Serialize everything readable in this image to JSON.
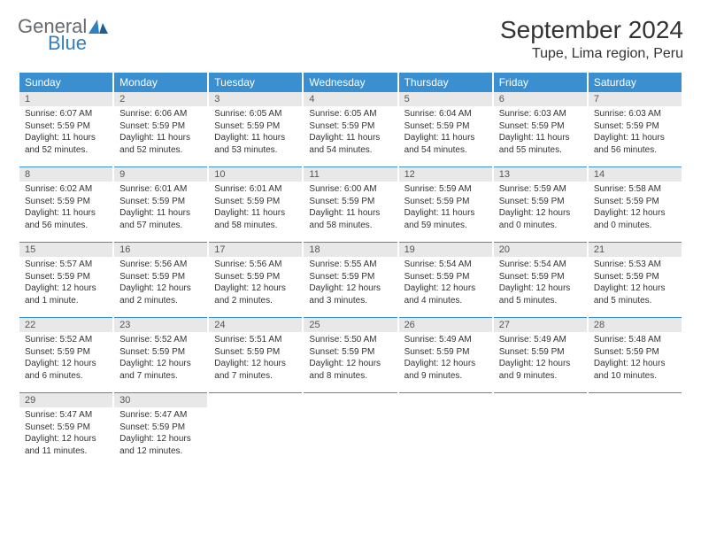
{
  "logo": {
    "line1": "General",
    "line2": "Blue"
  },
  "header": {
    "month": "September 2024",
    "location": "Tupe, Lima region, Peru"
  },
  "colors": {
    "header_bg": "#3a8fd0",
    "header_text": "#ffffff",
    "daynum_bg": "#e8e8e8",
    "rule": "#3a8fd0",
    "logo_gray": "#666a6e",
    "logo_blue": "#2f7fc1"
  },
  "dayHeaders": [
    "Sunday",
    "Monday",
    "Tuesday",
    "Wednesday",
    "Thursday",
    "Friday",
    "Saturday"
  ],
  "weeks": [
    [
      {
        "n": "1",
        "sunrise": "Sunrise: 6:07 AM",
        "sunset": "Sunset: 5:59 PM",
        "daylight": "Daylight: 11 hours and 52 minutes."
      },
      {
        "n": "2",
        "sunrise": "Sunrise: 6:06 AM",
        "sunset": "Sunset: 5:59 PM",
        "daylight": "Daylight: 11 hours and 52 minutes."
      },
      {
        "n": "3",
        "sunrise": "Sunrise: 6:05 AM",
        "sunset": "Sunset: 5:59 PM",
        "daylight": "Daylight: 11 hours and 53 minutes."
      },
      {
        "n": "4",
        "sunrise": "Sunrise: 6:05 AM",
        "sunset": "Sunset: 5:59 PM",
        "daylight": "Daylight: 11 hours and 54 minutes."
      },
      {
        "n": "5",
        "sunrise": "Sunrise: 6:04 AM",
        "sunset": "Sunset: 5:59 PM",
        "daylight": "Daylight: 11 hours and 54 minutes."
      },
      {
        "n": "6",
        "sunrise": "Sunrise: 6:03 AM",
        "sunset": "Sunset: 5:59 PM",
        "daylight": "Daylight: 11 hours and 55 minutes."
      },
      {
        "n": "7",
        "sunrise": "Sunrise: 6:03 AM",
        "sunset": "Sunset: 5:59 PM",
        "daylight": "Daylight: 11 hours and 56 minutes."
      }
    ],
    [
      {
        "n": "8",
        "sunrise": "Sunrise: 6:02 AM",
        "sunset": "Sunset: 5:59 PM",
        "daylight": "Daylight: 11 hours and 56 minutes."
      },
      {
        "n": "9",
        "sunrise": "Sunrise: 6:01 AM",
        "sunset": "Sunset: 5:59 PM",
        "daylight": "Daylight: 11 hours and 57 minutes."
      },
      {
        "n": "10",
        "sunrise": "Sunrise: 6:01 AM",
        "sunset": "Sunset: 5:59 PM",
        "daylight": "Daylight: 11 hours and 58 minutes."
      },
      {
        "n": "11",
        "sunrise": "Sunrise: 6:00 AM",
        "sunset": "Sunset: 5:59 PM",
        "daylight": "Daylight: 11 hours and 58 minutes."
      },
      {
        "n": "12",
        "sunrise": "Sunrise: 5:59 AM",
        "sunset": "Sunset: 5:59 PM",
        "daylight": "Daylight: 11 hours and 59 minutes."
      },
      {
        "n": "13",
        "sunrise": "Sunrise: 5:59 AM",
        "sunset": "Sunset: 5:59 PM",
        "daylight": "Daylight: 12 hours and 0 minutes."
      },
      {
        "n": "14",
        "sunrise": "Sunrise: 5:58 AM",
        "sunset": "Sunset: 5:59 PM",
        "daylight": "Daylight: 12 hours and 0 minutes."
      }
    ],
    [
      {
        "n": "15",
        "sunrise": "Sunrise: 5:57 AM",
        "sunset": "Sunset: 5:59 PM",
        "daylight": "Daylight: 12 hours and 1 minute."
      },
      {
        "n": "16",
        "sunrise": "Sunrise: 5:56 AM",
        "sunset": "Sunset: 5:59 PM",
        "daylight": "Daylight: 12 hours and 2 minutes."
      },
      {
        "n": "17",
        "sunrise": "Sunrise: 5:56 AM",
        "sunset": "Sunset: 5:59 PM",
        "daylight": "Daylight: 12 hours and 2 minutes."
      },
      {
        "n": "18",
        "sunrise": "Sunrise: 5:55 AM",
        "sunset": "Sunset: 5:59 PM",
        "daylight": "Daylight: 12 hours and 3 minutes."
      },
      {
        "n": "19",
        "sunrise": "Sunrise: 5:54 AM",
        "sunset": "Sunset: 5:59 PM",
        "daylight": "Daylight: 12 hours and 4 minutes."
      },
      {
        "n": "20",
        "sunrise": "Sunrise: 5:54 AM",
        "sunset": "Sunset: 5:59 PM",
        "daylight": "Daylight: 12 hours and 5 minutes."
      },
      {
        "n": "21",
        "sunrise": "Sunrise: 5:53 AM",
        "sunset": "Sunset: 5:59 PM",
        "daylight": "Daylight: 12 hours and 5 minutes."
      }
    ],
    [
      {
        "n": "22",
        "sunrise": "Sunrise: 5:52 AM",
        "sunset": "Sunset: 5:59 PM",
        "daylight": "Daylight: 12 hours and 6 minutes."
      },
      {
        "n": "23",
        "sunrise": "Sunrise: 5:52 AM",
        "sunset": "Sunset: 5:59 PM",
        "daylight": "Daylight: 12 hours and 7 minutes."
      },
      {
        "n": "24",
        "sunrise": "Sunrise: 5:51 AM",
        "sunset": "Sunset: 5:59 PM",
        "daylight": "Daylight: 12 hours and 7 minutes."
      },
      {
        "n": "25",
        "sunrise": "Sunrise: 5:50 AM",
        "sunset": "Sunset: 5:59 PM",
        "daylight": "Daylight: 12 hours and 8 minutes."
      },
      {
        "n": "26",
        "sunrise": "Sunrise: 5:49 AM",
        "sunset": "Sunset: 5:59 PM",
        "daylight": "Daylight: 12 hours and 9 minutes."
      },
      {
        "n": "27",
        "sunrise": "Sunrise: 5:49 AM",
        "sunset": "Sunset: 5:59 PM",
        "daylight": "Daylight: 12 hours and 9 minutes."
      },
      {
        "n": "28",
        "sunrise": "Sunrise: 5:48 AM",
        "sunset": "Sunset: 5:59 PM",
        "daylight": "Daylight: 12 hours and 10 minutes."
      }
    ],
    [
      {
        "n": "29",
        "sunrise": "Sunrise: 5:47 AM",
        "sunset": "Sunset: 5:59 PM",
        "daylight": "Daylight: 12 hours and 11 minutes."
      },
      {
        "n": "30",
        "sunrise": "Sunrise: 5:47 AM",
        "sunset": "Sunset: 5:59 PM",
        "daylight": "Daylight: 12 hours and 12 minutes."
      },
      null,
      null,
      null,
      null,
      null
    ]
  ]
}
